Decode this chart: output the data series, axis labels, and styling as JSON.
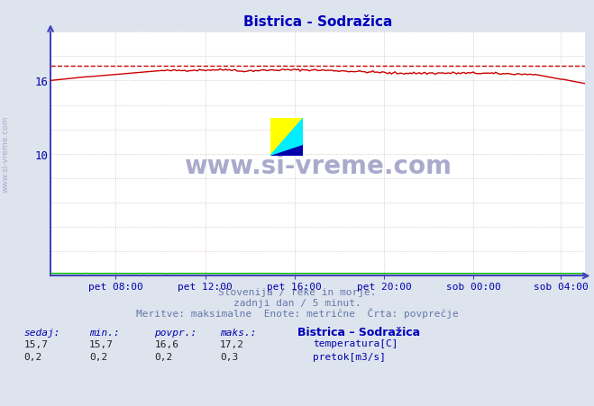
{
  "title": "Bistrica - Sodražica",
  "subtitle_lines": [
    "Slovenija / reke in morje.",
    "zadnji dan / 5 minut.",
    "Meritve: maksimalne  Enote: metrične  Črta: povprečje"
  ],
  "x_tick_labels": [
    "pet 08:00",
    "pet 12:00",
    "pet 16:00",
    "pet 20:00",
    "sob 00:00",
    "sob 04:00"
  ],
  "x_tick_fracs": [
    0.125,
    0.291,
    0.458,
    0.625,
    0.791,
    0.958
  ],
  "ylim": [
    0,
    20
  ],
  "xlim_n": 288,
  "bg_color": "#dde4ee",
  "plot_bg_color": "#ffffff",
  "grid_color": "#ccaaaa",
  "axis_color": "#4444bb",
  "title_color": "#0000bb",
  "subtitle_color": "#6677aa",
  "label_color": "#0000aa",
  "temp_color": "#cc0000",
  "flow_color": "#00bb00",
  "watermark_text": "www.si-vreme.com",
  "watermark_color": "#aaaacc",
  "side_text": "www.si-vreme.com",
  "legend_title": "Bistrica – Sodražica",
  "legend_items": [
    {
      "label": "temperatura[C]",
      "color": "#cc0000"
    },
    {
      "label": "pretok[m3/s]",
      "color": "#00bb00"
    }
  ],
  "stats_headers": [
    "sedaj:",
    "min.:",
    "povpr.:",
    "maks.:"
  ],
  "stats_temp": [
    "15,7",
    "15,7",
    "16,6",
    "17,2"
  ],
  "stats_flow": [
    "0,2",
    "0,2",
    "0,2",
    "0,3"
  ],
  "temp_max_line": 17.2,
  "logo_colors": {
    "yellow": "#ffff00",
    "cyan": "#00eeff",
    "blue": "#0000aa"
  }
}
